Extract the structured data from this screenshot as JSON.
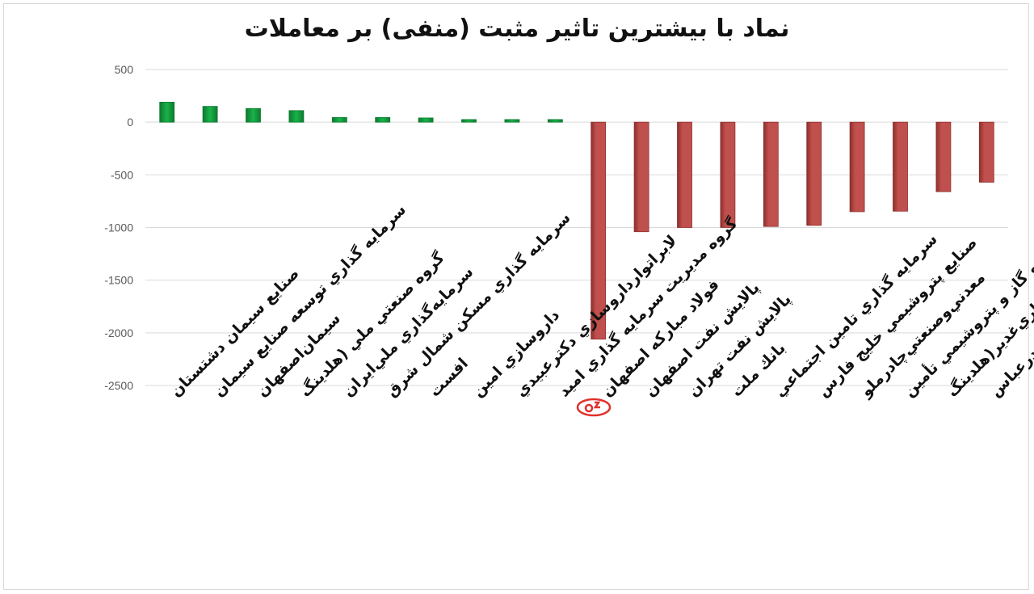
{
  "title": "نماد با بیشترین تاثیر مثبت (منفی) بر معاملات",
  "colors": {
    "positive": "#19b34a",
    "positive_dark": "#0e7a30",
    "negative": "#c0504d",
    "negative_dark": "#8c2f2d",
    "grid": "#d9d9d9",
    "logo": "#e0312b"
  },
  "chart_data": {
    "type": "bar",
    "ylim": [
      -2500,
      500
    ],
    "yticks": [
      500,
      0,
      -500,
      -1000,
      -1500,
      -2000,
      -2500
    ],
    "grid": true,
    "legend": "none",
    "categories": [
      "صنايع سيمان دشتستان",
      "سرمايه گذاري توسعه صنايع سيمان",
      "سيمان‌اصفهان",
      "گروه صنعتي ملي (هلدينگ",
      "سرمايه‌گذاري ملي‌ايران",
      "سرمايه گذاري مسكن شمال شرق",
      "افست",
      "داروسازي امين",
      "لابراتوارداروسازي دكترعبيدي",
      "گروه مديريت سرمايه گذاري اميد",
      "فولاد مباركه اصفهان",
      "پالايش نفت اصفهان",
      "پالايش نفت تهران",
      "بانك ملت",
      "سرمايه گذاري تامين اجتماعي",
      "صنايع پتروشيمي خليج فارس",
      "معدني‌وصنعتي‌چادرملو",
      "س. نفت و گاز و پتروشيمي تأمين",
      "سرمايه‌گذاري‌غدير(هلدينگ",
      "پالايش نفت بندرعباس"
    ],
    "values": [
      190,
      150,
      130,
      110,
      45,
      45,
      40,
      25,
      25,
      25,
      -2060,
      -1040,
      -1000,
      -1000,
      -990,
      -980,
      -850,
      -845,
      -660,
      -570
    ]
  }
}
